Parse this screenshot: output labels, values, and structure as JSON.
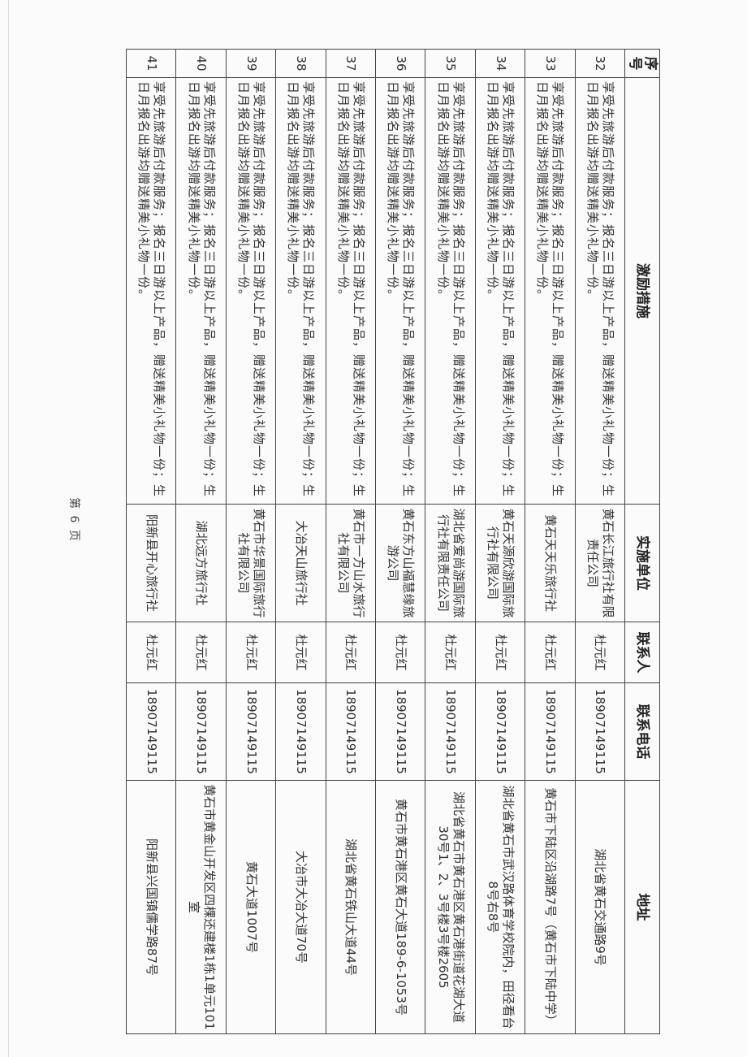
{
  "headers": [
    "序号",
    "激励措施",
    "实施单位",
    "联系人",
    "联系电话",
    "地址"
  ],
  "rows": [
    {
      "no": "32",
      "measure": "享受先旅游后付款服务；报名三日游以上产品，赠送精美小礼物一份；生日月报名出游均赠送精美小礼物一份。",
      "unit": "黄石长江旅行社有限责任公司",
      "contact": "杜元红",
      "phone": "18907149115",
      "address": "湖北省黄石交通路9号"
    },
    {
      "no": "33",
      "measure": "享受先旅游后付款服务；报名三日游以上产品，赠送精美小礼物一份；生日月报名出游均赠送精美小礼物一份。",
      "unit": "黄石天天乐旅行社",
      "contact": "杜元红",
      "phone": "18907149115",
      "address": "黄石市下陆区沿湖路7号（黄石市下陆中学）"
    },
    {
      "no": "34",
      "measure": "享受先旅游后付款服务；报名三日游以上产品，赠送精美小礼物一份；生日月报名出游均赠送精美小礼物一份。",
      "unit": "黄石天源欣游国际旅行社有限公司",
      "contact": "杜元红",
      "phone": "18907149115",
      "address": "湖北省黄石市武汉路体育学校院内，田径看台8号右8号"
    },
    {
      "no": "35",
      "measure": "享受先旅游后付款服务；报名三日游以上产品，赠送精美小礼物一份；生日月报名出游均赠送精美小礼物一份。",
      "unit": "湖北省爱尚游国际旅行社有限责任公司",
      "contact": "杜元红",
      "phone": "18907149115",
      "address": "湖北省黄石市黄石港区黄石港街道花湖大道30号1、2、3号楼3号楼2605"
    },
    {
      "no": "36",
      "measure": "享受先旅游后付款服务；报名三日游以上产品，赠送精美小礼物一份；生日月报名出游均赠送精美小礼物一份。",
      "unit": "黄石东方山福慧缘旅游公司",
      "contact": "杜元红",
      "phone": "18907149115",
      "address": "黄石市黄石港区黄石大道189-6-1053号"
    },
    {
      "no": "37",
      "measure": "享受先旅游后付款服务；报名三日游以上产品，赠送精美小礼物一份；生日月报名出游均赠送精美小礼物一份。",
      "unit": "黄石市一方山水旅行社有限公司",
      "contact": "杜元红",
      "phone": "18907149115",
      "address": "湖北省黄石铁山大道44号"
    },
    {
      "no": "38",
      "measure": "享受先旅游后付款服务；报名三日游以上产品，赠送精美小礼物一份；生日月报名出游均赠送精美小礼物一份。",
      "unit": "大冶天山旅行社",
      "contact": "杜元红",
      "phone": "18907149115",
      "address": "大冶市大冶大道70号"
    },
    {
      "no": "39",
      "measure": "享受先旅游后付款服务；报名三日游以上产品，赠送精美小礼物一份；生日月报名出游均赠送精美小礼物一份。",
      "unit": "黄石市华景国际旅行社有限公司",
      "contact": "杜元红",
      "phone": "18907149115",
      "address": "黄石大道1007号"
    },
    {
      "no": "40",
      "measure": "享受先旅游后付款服务；报名三日游以上产品，赠送精美小礼物一份；生日月报名出游均赠送精美小礼物一份。",
      "unit": "湖北远方旅行社",
      "contact": "杜元红",
      "phone": "18907149115",
      "address": "黄石市黄金山开发区四棵还建楼1栋1单元101室"
    },
    {
      "no": "41",
      "measure": "享受先旅游后付款服务；报名三日游以上产品，赠送精美小礼物一份；生日月报名出游均赠送精美小礼物一份。",
      "unit": "阳新县开心旅行社",
      "contact": "杜元红",
      "phone": "18907149115",
      "address": "阳新县兴国镇儒学路87号"
    }
  ],
  "footer": "第 6 页"
}
